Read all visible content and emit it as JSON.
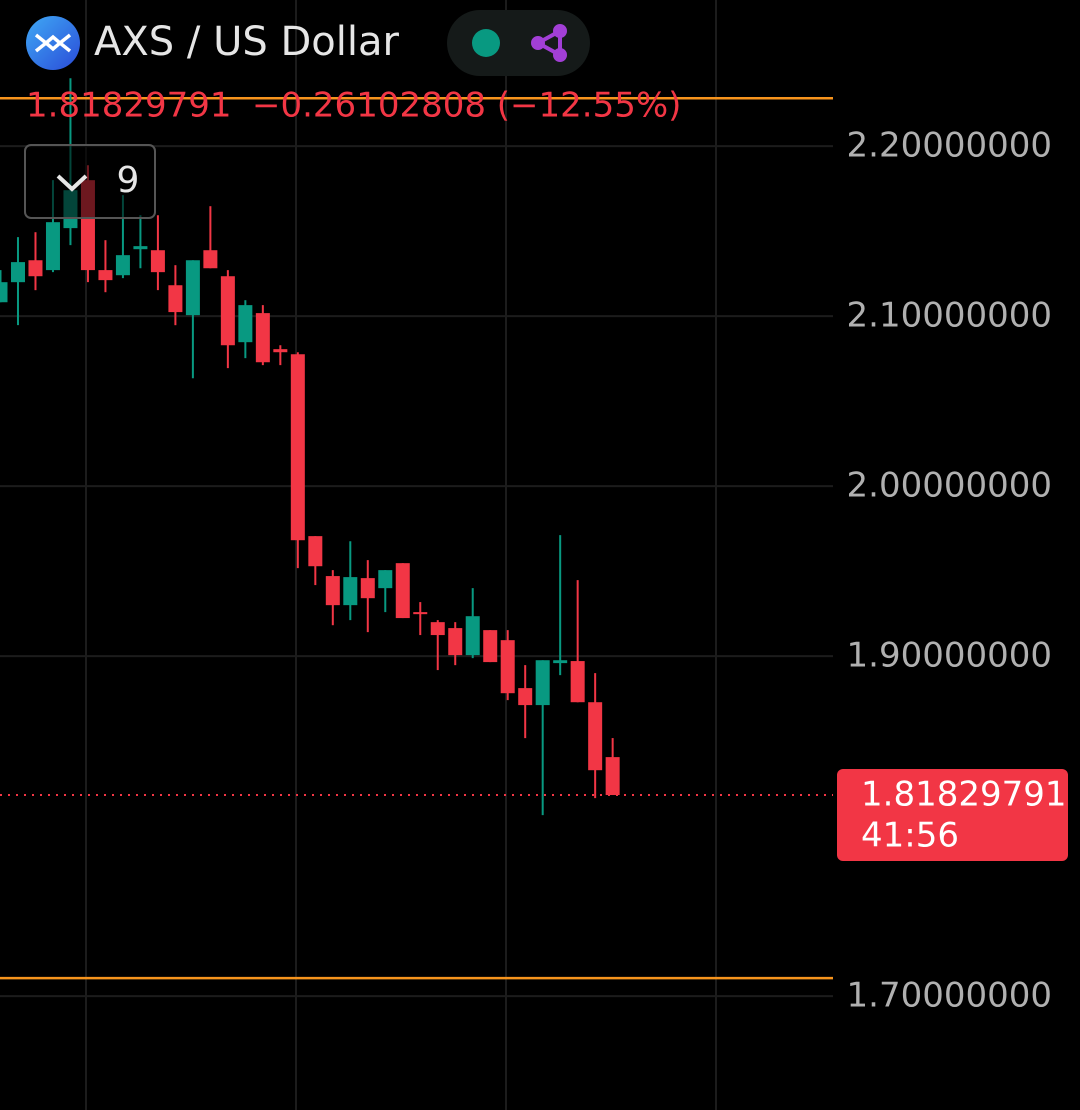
{
  "chart_data": {
    "type": "candlestick",
    "title": "AXS / US Dollar",
    "change": "−0.26102808 (−12.55%)",
    "indicator_count": "9",
    "countdown": "41:56",
    "categories": [
      null,
      null,
      null,
      null,
      null,
      null,
      null,
      null,
      null,
      null,
      null,
      null,
      null,
      null,
      null,
      null,
      null,
      null,
      null,
      null,
      null,
      null,
      null,
      null,
      null,
      null,
      null,
      null,
      null,
      null,
      null,
      null,
      null,
      null,
      null,
      null
    ],
    "open": [
      2.1082,
      2.12,
      2.1329,
      2.1271,
      2.1518,
      2.18,
      2.1271,
      2.1241,
      2.1394,
      2.1388,
      2.1182,
      2.1006,
      2.1388,
      2.1235,
      2.0847,
      2.1018,
      2.0806,
      2.0776,
      1.9706,
      1.9471,
      1.93,
      1.9459,
      1.94,
      1.9547,
      1.9259,
      1.92,
      1.9165,
      1.9006,
      1.9153,
      1.9094,
      1.8812,
      1.8712,
      1.8959,
      1.8971,
      1.8729,
      1.8406
    ],
    "high": [
      2.1271,
      2.1465,
      2.1494,
      2.18,
      2.24,
      2.1888,
      2.1447,
      2.1712,
      2.1594,
      2.1594,
      2.13,
      2.1329,
      2.1647,
      2.1271,
      2.1094,
      2.1065,
      2.0829,
      2.0788,
      1.9706,
      1.9506,
      1.9676,
      1.9565,
      1.9506,
      1.9547,
      1.9318,
      1.9212,
      1.92,
      1.94,
      1.9153,
      1.9153,
      1.8947,
      1.8976,
      1.9712,
      1.9447,
      1.89,
      1.8518
    ],
    "low": [
      2.1082,
      2.0947,
      2.1153,
      2.1259,
      2.1418,
      2.12,
      2.1141,
      2.1224,
      2.1282,
      2.1153,
      2.0947,
      2.0635,
      2.1282,
      2.0694,
      2.0753,
      2.0712,
      2.0712,
      1.9518,
      1.9418,
      1.9182,
      1.9212,
      1.9141,
      1.9259,
      1.9224,
      1.9124,
      1.8918,
      1.8947,
      1.8988,
      1.8965,
      1.8741,
      1.8518,
      1.8065,
      1.8888,
      1.8729,
      1.8165,
      1.81829791
    ],
    "close": [
      2.12,
      2.1318,
      2.1235,
      2.1553,
      2.1741,
      2.1271,
      2.1212,
      2.1359,
      2.1412,
      2.1259,
      2.1024,
      2.1329,
      2.1282,
      2.0829,
      2.1065,
      2.0729,
      2.0788,
      1.9682,
      1.9529,
      1.93,
      1.9465,
      1.9341,
      1.9506,
      1.9224,
      1.9247,
      1.9124,
      1.9006,
      1.9235,
      1.8965,
      1.8782,
      1.8712,
      1.8976,
      1.8976,
      1.8729,
      1.8329,
      1.81829791
    ],
    "up_color": "#089981",
    "down_color": "#f23645",
    "price_lines": [
      2.2282,
      1.7106
    ],
    "price_line_color": "#f7941d",
    "ylim": [
      1.633,
      2.286
    ],
    "yticks": [
      {
        "value": 1.7,
        "label": "1.70000000"
      },
      {
        "value": 1.9,
        "label": "1.90000000"
      },
      {
        "value": 2.0,
        "label": "2.00000000"
      },
      {
        "value": 2.1,
        "label": "2.10000000"
      },
      {
        "value": 2.2,
        "label": "2.20000000"
      }
    ],
    "grid": true
  }
}
